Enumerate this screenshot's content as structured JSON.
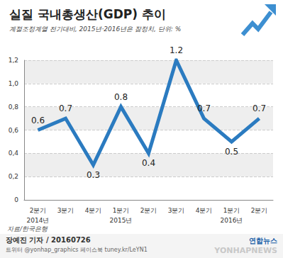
{
  "chart_data": {
    "type": "line",
    "title": "실질 국내총생산(GDP) 추이",
    "subtitle": "계절조정계열 전기대비, 2015년·2016년은 잠정치, 단위: %",
    "categories": [
      "2분기\n2014년",
      "3분기",
      "4분기",
      "1분기\n2015년",
      "2분기",
      "3분기",
      "4분기",
      "1분기\n2016년",
      "2분기"
    ],
    "values": [
      0.6,
      0.7,
      0.3,
      0.8,
      0.4,
      1.2,
      0.7,
      0.5,
      0.7
    ],
    "color": "#2b7bc0",
    "ylim": [
      0,
      1.2
    ],
    "yticks": [
      0,
      {
        "value": 0.2,
        "label": "0,2"
      },
      {
        "value": 0.4,
        "label": "0,4"
      },
      {
        "value": 0.6,
        "label": "0,6"
      },
      {
        "value": 0.8,
        "label": "0,8"
      },
      {
        "value": 1.0,
        "label": "1,0"
      },
      {
        "value": 1.2,
        "label": "1,2"
      }
    ],
    "grid": true,
    "data_labels": true,
    "line_style": "solid",
    "source": "자료/한국은행",
    "credits": [
      "장예진 기자 / 20160726",
      "트위터 @yonhap_graphics 페이스북 tuney.kr/LeYN1"
    ],
    "logo": "연합뉴스",
    "watermark": "YONHAPNEWS"
  }
}
